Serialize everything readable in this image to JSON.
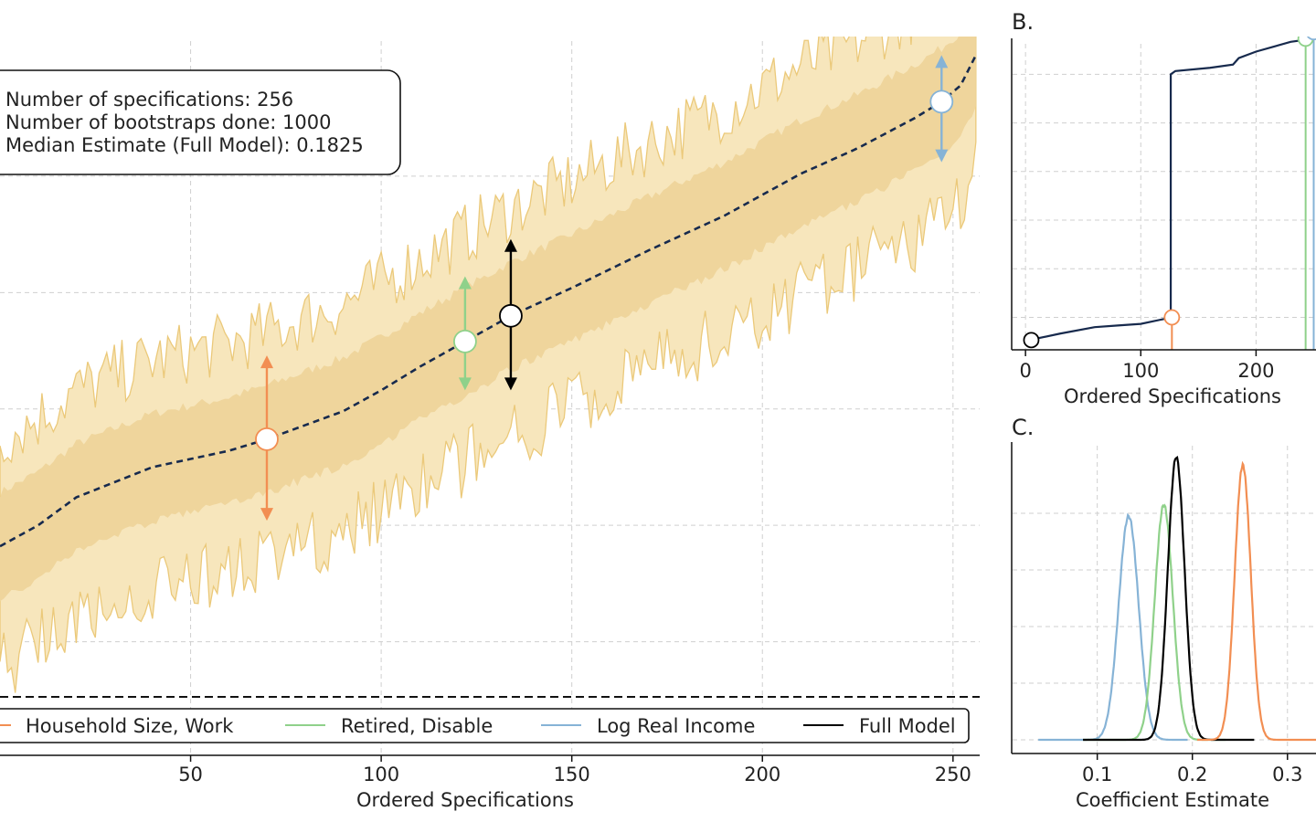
{
  "colors": {
    "household": "#f28e52",
    "retired": "#8fd18a",
    "income": "#86b3d6",
    "full": "#000000",
    "median_line": "#172a4d",
    "band_outer": "#f7e6bc",
    "band_outer_edge": "#ebc97a",
    "band_inner": "#efd59c"
  },
  "info_box": {
    "line1": "Number of specifications: 256",
    "line2": "Number of bootstraps done: 1000",
    "line3": "Median Estimate (Full Model): 0.1825"
  },
  "panel_b": {
    "letter": "B."
  },
  "panel_c": {
    "letter": "C."
  },
  "chart_data": [
    {
      "panel": "main",
      "type": "line",
      "xlabel": "Ordered Specifications",
      "ylabel": "",
      "xlim": [
        0,
        257
      ],
      "x_ticks": [
        50,
        100,
        150,
        200,
        250
      ],
      "legend_placement": "bottom",
      "grid": true,
      "median_curve": {
        "x": [
          0,
          10,
          20,
          40,
          60,
          70,
          80,
          90,
          100,
          110,
          122,
          134,
          150,
          170,
          190,
          200,
          210,
          225,
          240,
          247,
          252,
          256
        ],
        "y": [
          0.041,
          0.05,
          0.062,
          0.075,
          0.082,
          0.087,
          0.093,
          0.099,
          0.108,
          0.118,
          0.129,
          0.14,
          0.152,
          0.168,
          0.183,
          0.192,
          0.201,
          0.212,
          0.225,
          0.232,
          0.239,
          0.252
        ]
      },
      "band_inner_halfwidth": 0.023,
      "band_outer_halfwidth": 0.046,
      "highlights": [
        {
          "name": "Household Size, Work",
          "color_key": "household",
          "x": 70,
          "y": 0.087,
          "low": 0.052,
          "high": 0.123
        },
        {
          "name": "Retired, Disable",
          "color_key": "retired",
          "x": 122,
          "y": 0.129,
          "low": 0.108,
          "high": 0.157
        },
        {
          "name": "Full Model",
          "color_key": "full",
          "x": 134,
          "y": 0.14,
          "low": 0.108,
          "high": 0.173
        },
        {
          "name": "Log Real Income",
          "color_key": "income",
          "x": 247,
          "y": 0.232,
          "low": 0.206,
          "high": 0.252
        }
      ],
      "legend": [
        "Household Size, Work",
        "Retired, Disable",
        "Log Real Income",
        "Full Model"
      ]
    },
    {
      "panel": "B",
      "type": "line",
      "xlabel": "Ordered Specifications",
      "x_ticks": [
        0,
        100,
        200
      ],
      "xlim": [
        -12,
        252
      ],
      "grid": true,
      "curve": {
        "x": [
          0,
          10,
          30,
          60,
          80,
          100,
          120,
          126,
          126,
          130,
          160,
          180,
          185,
          200,
          215,
          230,
          240,
          244
        ],
        "y": [
          0.02,
          0.035,
          0.05,
          0.07,
          0.075,
          0.08,
          0.095,
          0.1,
          0.85,
          0.86,
          0.87,
          0.88,
          0.9,
          0.92,
          0.935,
          0.95,
          0.955,
          0.96
        ]
      },
      "markers": [
        {
          "x": 5,
          "y": 0.03,
          "color_key": "full"
        },
        {
          "x": 127,
          "y": 0.1,
          "color_key": "household"
        },
        {
          "x": 243,
          "y": 0.96,
          "color_key": "retired"
        },
        {
          "x": 250,
          "y": 0.98,
          "color_key": "income"
        }
      ]
    },
    {
      "panel": "C",
      "type": "line",
      "xlabel": "Coefficient Estimate",
      "x_ticks": [
        0.1,
        0.2,
        0.3
      ],
      "xlim": [
        0.01,
        0.33
      ],
      "grid": true,
      "densities": [
        {
          "color_key": "income",
          "mean": 0.133,
          "sd": 0.0105,
          "peak": 0.79,
          "x_from": 0.038,
          "x_to": 0.195
        },
        {
          "color_key": "retired",
          "mean": 0.17,
          "sd": 0.0095,
          "peak": 0.83,
          "x_from": 0.085,
          "x_to": 0.235
        },
        {
          "color_key": "full",
          "mean": 0.183,
          "sd": 0.0088,
          "peak": 1.0,
          "x_from": 0.085,
          "x_to": 0.265
        },
        {
          "color_key": "household",
          "mean": 0.253,
          "sd": 0.0085,
          "peak": 0.97,
          "x_from": 0.205,
          "x_to": 0.33
        }
      ]
    }
  ]
}
